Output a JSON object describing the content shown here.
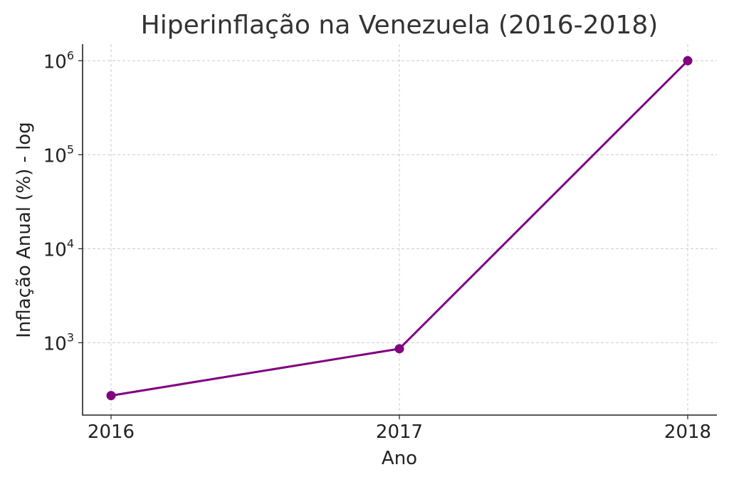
{
  "chart_data": {
    "type": "line",
    "title": "Hiperinflação na Venezuela (2016-2018)",
    "xlabel": "Ano",
    "ylabel": "Inflação Anual (%) - log",
    "x": [
      "2016",
      "2017",
      "2018"
    ],
    "y_scale": "log",
    "ylim": [
      170,
      1500000
    ],
    "y_ticks": [
      {
        "base": "10",
        "exp": "3",
        "value": 1000
      },
      {
        "base": "10",
        "exp": "4",
        "value": 10000
      },
      {
        "base": "10",
        "exp": "5",
        "value": 100000
      },
      {
        "base": "10",
        "exp": "6",
        "value": 1000000
      }
    ],
    "series": [
      {
        "values": [
          274,
          863,
          1000000
        ],
        "color": "#800080",
        "marker": "circle"
      }
    ],
    "grid": true
  }
}
